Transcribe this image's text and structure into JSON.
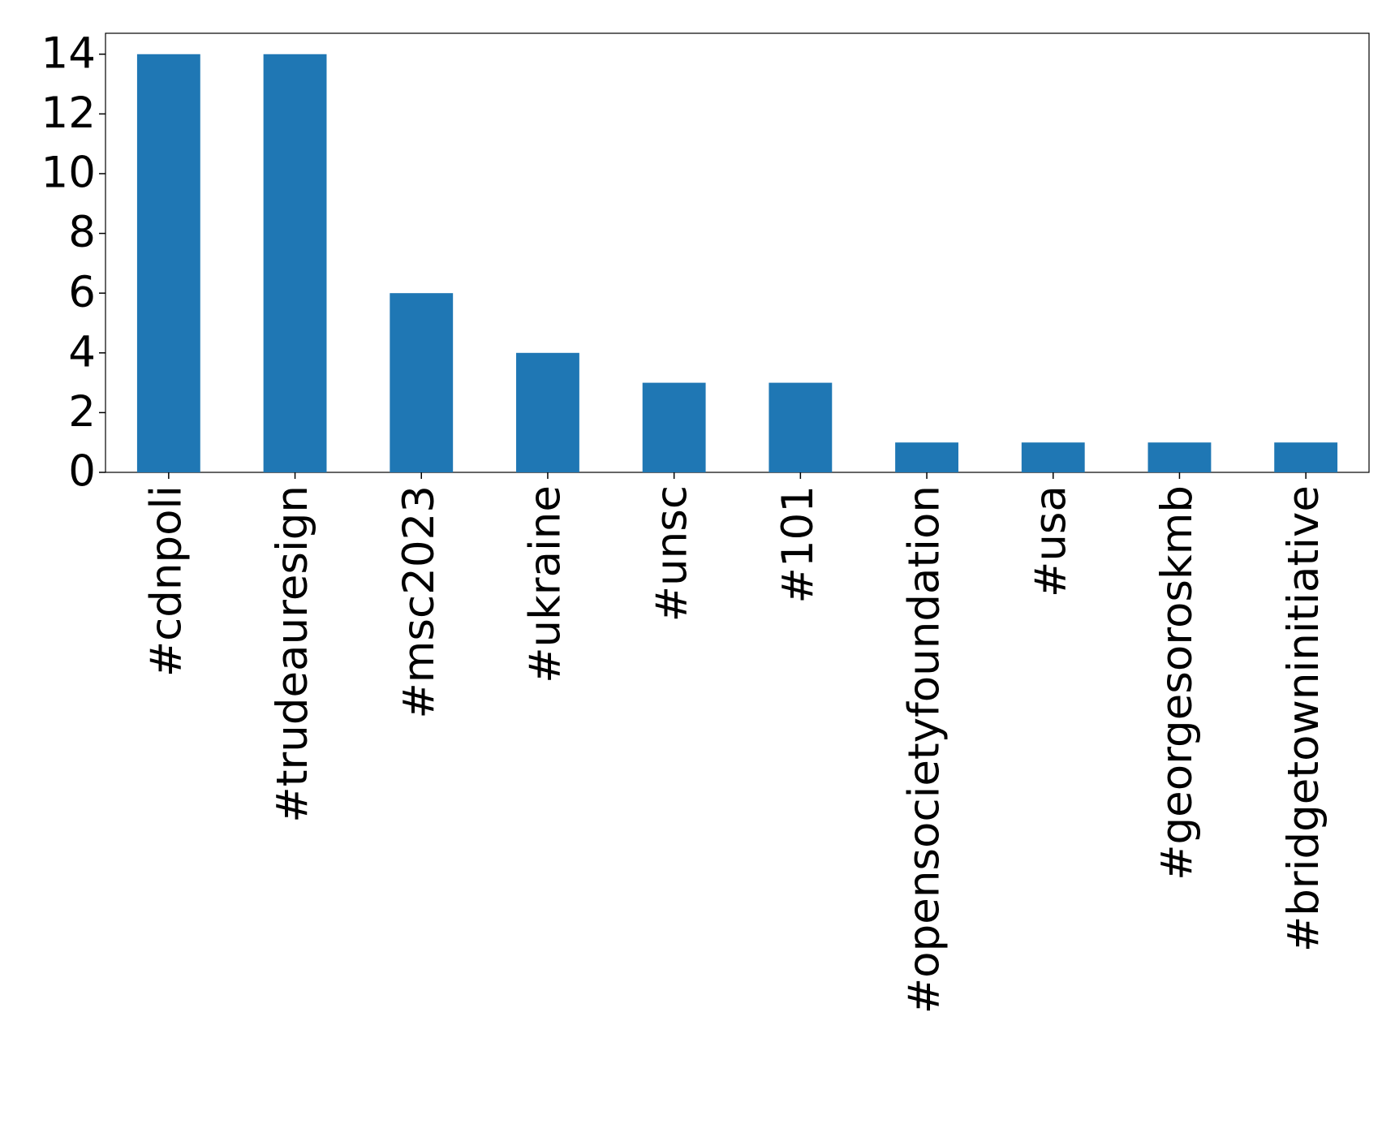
{
  "chart_data": {
    "type": "bar",
    "categories": [
      "#cdnpoli",
      "#trudeauresign",
      "#msc2023",
      "#ukraine",
      "#unsc",
      "#101",
      "#opensocietyfoundation",
      "#usa",
      "#georgesoroskmb",
      "#bridgetowninitiative"
    ],
    "values": [
      14,
      14,
      6,
      4,
      3,
      3,
      1,
      1,
      1,
      1
    ],
    "color": "#1f77b4",
    "ylim": [
      0,
      14.7
    ],
    "yticks": [
      0,
      2,
      4,
      6,
      8,
      10,
      12,
      14
    ],
    "grid": false
  }
}
